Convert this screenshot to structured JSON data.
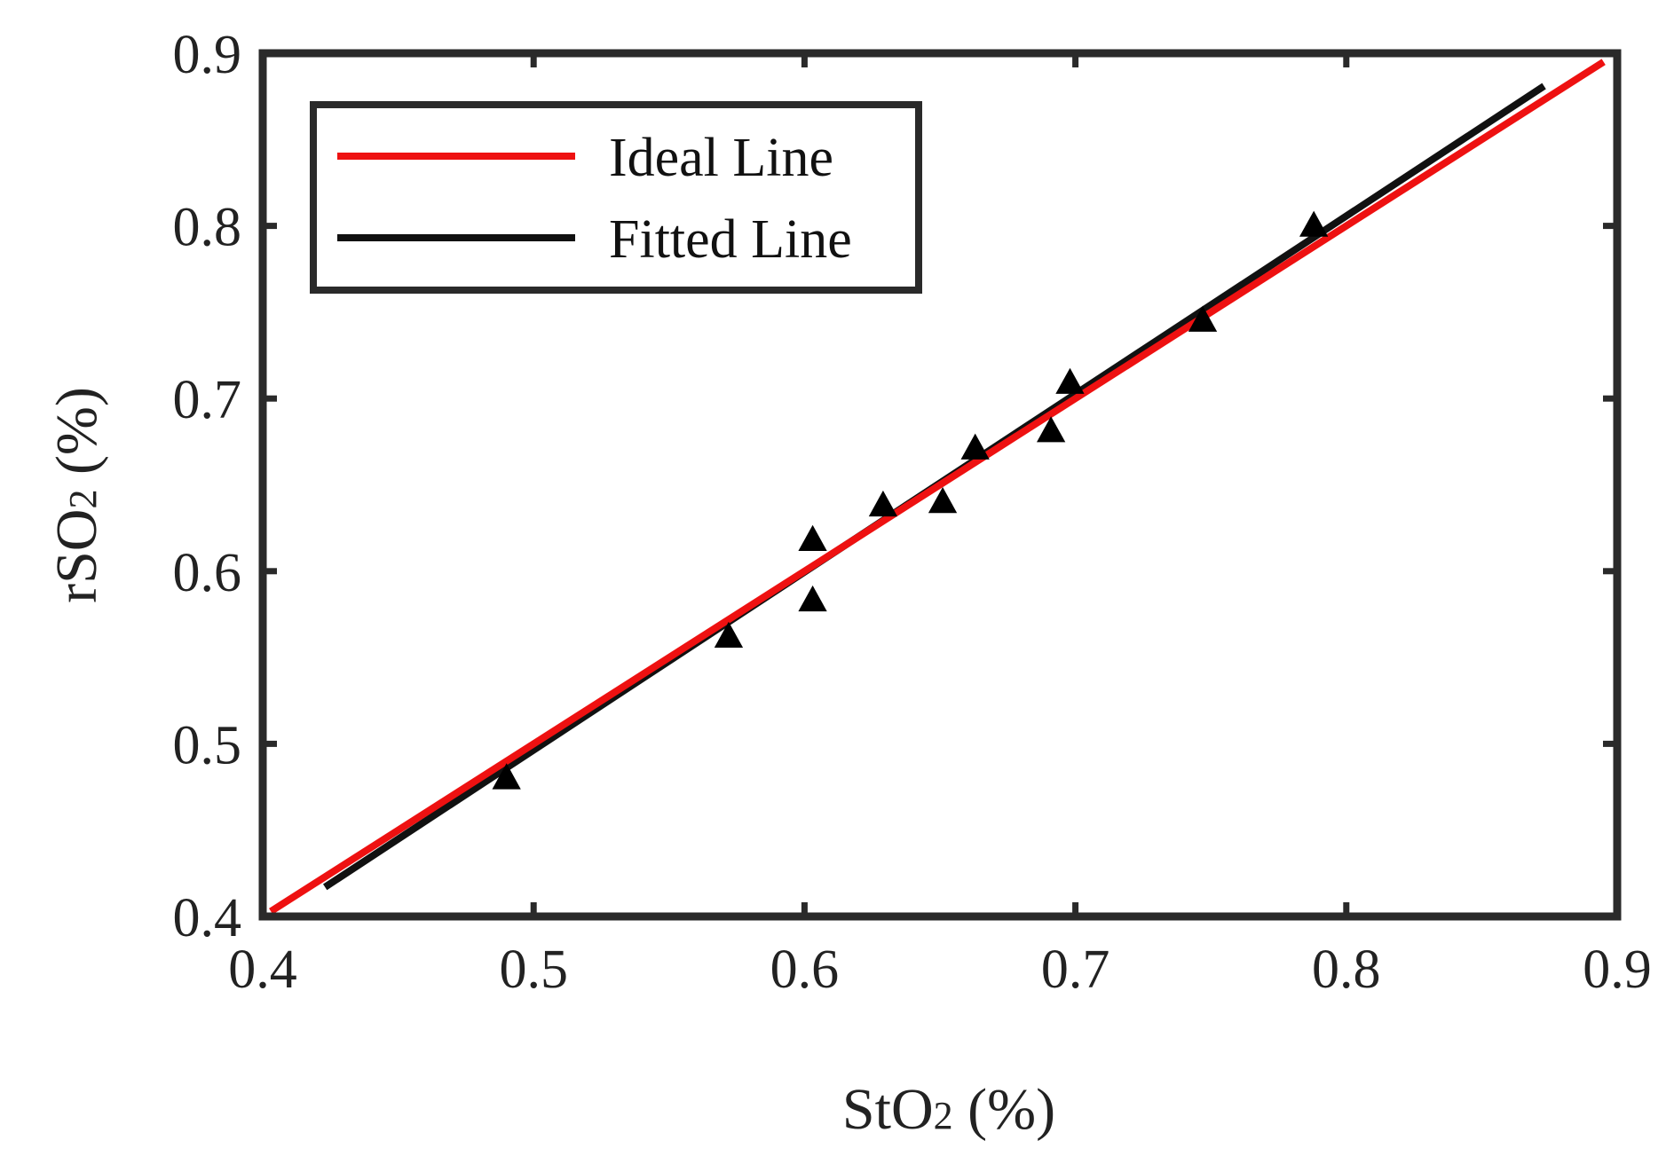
{
  "chart_data": {
    "type": "scatter",
    "title": "",
    "xlabel": {
      "main": "StO",
      "sub": "2",
      "tail": " (%)"
    },
    "ylabel": {
      "main": "rSO",
      "sub": "2",
      "tail": " (%)"
    },
    "xlim": [
      0.4,
      0.9
    ],
    "ylim": [
      0.4,
      0.9
    ],
    "xticks": [
      0.4,
      0.5,
      0.6,
      0.7,
      0.8,
      0.9
    ],
    "yticks": [
      0.4,
      0.5,
      0.6,
      0.7,
      0.8,
      0.9
    ],
    "xtick_labels": [
      "0.4",
      "0.5",
      "0.6",
      "0.7",
      "0.8",
      "0.9"
    ],
    "ytick_labels": [
      "0.4",
      "0.5",
      "0.6",
      "0.7",
      "0.8",
      "0.9"
    ],
    "grid": false,
    "legend_position": "top-left",
    "points": [
      {
        "x": 0.49,
        "y": 0.48
      },
      {
        "x": 0.572,
        "y": 0.562
      },
      {
        "x": 0.603,
        "y": 0.618
      },
      {
        "x": 0.603,
        "y": 0.583
      },
      {
        "x": 0.629,
        "y": 0.638
      },
      {
        "x": 0.651,
        "y": 0.64
      },
      {
        "x": 0.663,
        "y": 0.671
      },
      {
        "x": 0.691,
        "y": 0.681
      },
      {
        "x": 0.698,
        "y": 0.709
      },
      {
        "x": 0.747,
        "y": 0.745
      },
      {
        "x": 0.788,
        "y": 0.8
      }
    ],
    "series": [
      {
        "name": "Ideal Line",
        "color": "#ee1111",
        "x": [
          0.403,
          0.895
        ],
        "y": [
          0.403,
          0.895
        ]
      },
      {
        "name": "Fitted Line",
        "color": "#111111",
        "x": [
          0.423,
          0.873
        ],
        "y": [
          0.417,
          0.881
        ]
      }
    ],
    "marker_color": "#000000",
    "axis_color": "#2a2a2a"
  }
}
